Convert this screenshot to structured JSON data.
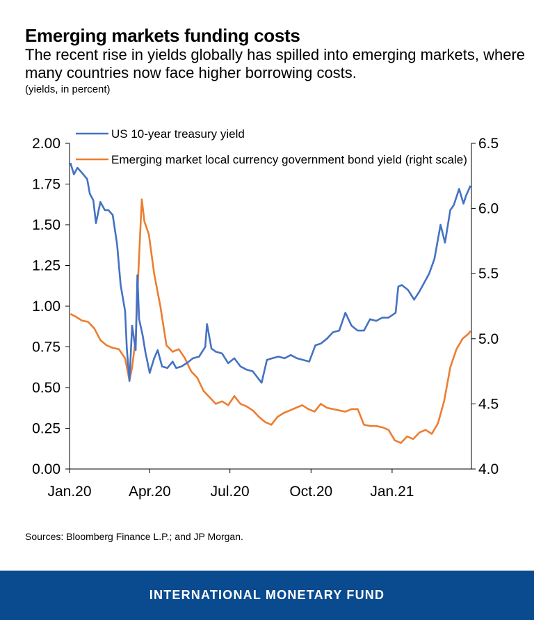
{
  "header": {
    "title": "Emerging markets funding costs",
    "subtitle": "The recent rise in yields globally has spilled into emerging markets, where many countries now face higher borrowing costs.",
    "units": "(yields, in percent)"
  },
  "source": "Sources: Bloomberg Finance L.P.; and JP Morgan.",
  "footer": {
    "org": "INTERNATIONAL MONETARY FUND"
  },
  "colors": {
    "us": "#4472c4",
    "em": "#ed7d31",
    "footer": "#0a4a8e"
  },
  "chart_data": {
    "type": "line",
    "x_ticks": [
      "Jan.20",
      "Apr.20",
      "Jul.20",
      "Oct.20",
      "Jan.21"
    ],
    "y_left": {
      "min": 0,
      "max": 2,
      "ticks": [
        "0.00",
        "0.25",
        "0.50",
        "0.75",
        "1.00",
        "1.25",
        "1.50",
        "1.75",
        "2.00"
      ]
    },
    "y_right": {
      "min": 4.0,
      "max": 6.5,
      "ticks": [
        "4.0",
        "4.5",
        "5.0",
        "5.5",
        "6.0",
        "6.5"
      ]
    },
    "legend_position": "top",
    "grid": false,
    "series": [
      {
        "name": "US 10-year treasury yield",
        "axis": "left",
        "x": [
          "2020-01-02",
          "2020-01-06",
          "2020-01-10",
          "2020-01-15",
          "2020-01-21",
          "2020-01-24",
          "2020-01-28",
          "2020-01-31",
          "2020-02-05",
          "2020-02-10",
          "2020-02-14",
          "2020-02-19",
          "2020-02-24",
          "2020-02-28",
          "2020-03-04",
          "2020-03-06",
          "2020-03-09",
          "2020-03-12",
          "2020-03-16",
          "2020-03-18",
          "2020-03-20",
          "2020-03-24",
          "2020-03-27",
          "2020-04-01",
          "2020-04-06",
          "2020-04-10",
          "2020-04-15",
          "2020-04-21",
          "2020-04-27",
          "2020-05-01",
          "2020-05-07",
          "2020-05-13",
          "2020-05-20",
          "2020-05-27",
          "2020-06-03",
          "2020-06-05",
          "2020-06-10",
          "2020-06-15",
          "2020-06-22",
          "2020-06-29",
          "2020-07-06",
          "2020-07-13",
          "2020-07-20",
          "2020-07-27",
          "2020-08-03",
          "2020-08-06",
          "2020-08-12",
          "2020-08-18",
          "2020-08-25",
          "2020-09-01",
          "2020-09-08",
          "2020-09-15",
          "2020-09-22",
          "2020-09-29",
          "2020-10-06",
          "2020-10-12",
          "2020-10-19",
          "2020-10-26",
          "2020-11-02",
          "2020-11-09",
          "2020-11-16",
          "2020-11-23",
          "2020-11-30",
          "2020-12-07",
          "2020-12-14",
          "2020-12-21",
          "2020-12-28",
          "2021-01-05",
          "2021-01-08",
          "2021-01-12",
          "2021-01-19",
          "2021-01-26",
          "2021-02-01",
          "2021-02-08",
          "2021-02-12",
          "2021-02-18",
          "2021-02-25",
          "2021-03-02",
          "2021-03-08",
          "2021-03-12",
          "2021-03-18",
          "2021-03-23",
          "2021-03-26",
          "2021-03-31"
        ],
        "y": [
          1.88,
          1.81,
          1.85,
          1.82,
          1.78,
          1.69,
          1.65,
          1.51,
          1.64,
          1.59,
          1.59,
          1.56,
          1.38,
          1.13,
          0.97,
          0.74,
          0.54,
          0.88,
          0.73,
          1.19,
          0.92,
          0.82,
          0.72,
          0.59,
          0.68,
          0.73,
          0.63,
          0.62,
          0.66,
          0.62,
          0.63,
          0.65,
          0.68,
          0.69,
          0.75,
          0.89,
          0.74,
          0.72,
          0.71,
          0.65,
          0.68,
          0.63,
          0.61,
          0.6,
          0.55,
          0.53,
          0.67,
          0.68,
          0.69,
          0.68,
          0.7,
          0.68,
          0.67,
          0.66,
          0.76,
          0.77,
          0.8,
          0.84,
          0.85,
          0.96,
          0.88,
          0.85,
          0.85,
          0.92,
          0.91,
          0.93,
          0.93,
          0.96,
          1.12,
          1.13,
          1.1,
          1.04,
          1.09,
          1.16,
          1.2,
          1.29,
          1.5,
          1.39,
          1.59,
          1.62,
          1.72,
          1.63,
          1.68,
          1.74
        ]
      },
      {
        "name": "Emerging market local currency government bond yield (right scale)",
        "axis": "right",
        "x": [
          "2020-01-02",
          "2020-01-08",
          "2020-01-15",
          "2020-01-22",
          "2020-01-29",
          "2020-02-05",
          "2020-02-12",
          "2020-02-19",
          "2020-02-26",
          "2020-03-04",
          "2020-03-09",
          "2020-03-12",
          "2020-03-16",
          "2020-03-19",
          "2020-03-23",
          "2020-03-26",
          "2020-03-31",
          "2020-04-06",
          "2020-04-13",
          "2020-04-20",
          "2020-04-27",
          "2020-05-04",
          "2020-05-11",
          "2020-05-18",
          "2020-05-25",
          "2020-06-01",
          "2020-06-08",
          "2020-06-15",
          "2020-06-22",
          "2020-06-29",
          "2020-07-06",
          "2020-07-13",
          "2020-07-20",
          "2020-07-27",
          "2020-08-03",
          "2020-08-10",
          "2020-08-17",
          "2020-08-24",
          "2020-08-31",
          "2020-09-07",
          "2020-09-14",
          "2020-09-21",
          "2020-09-28",
          "2020-10-05",
          "2020-10-12",
          "2020-10-19",
          "2020-10-26",
          "2020-11-02",
          "2020-11-09",
          "2020-11-16",
          "2020-11-23",
          "2020-11-30",
          "2020-12-07",
          "2020-12-14",
          "2020-12-21",
          "2020-12-28",
          "2021-01-04",
          "2021-01-11",
          "2021-01-18",
          "2021-01-25",
          "2021-02-01",
          "2021-02-08",
          "2021-02-15",
          "2021-02-22",
          "2021-03-01",
          "2021-03-08",
          "2021-03-15",
          "2021-03-22",
          "2021-03-29",
          "2021-03-31"
        ],
        "y": [
          5.19,
          5.17,
          5.14,
          5.13,
          5.08,
          4.99,
          4.95,
          4.93,
          4.92,
          4.85,
          4.68,
          4.78,
          5.0,
          5.5,
          6.07,
          5.9,
          5.8,
          5.5,
          5.25,
          4.95,
          4.9,
          4.92,
          4.85,
          4.75,
          4.7,
          4.6,
          4.55,
          4.5,
          4.52,
          4.49,
          4.56,
          4.5,
          4.48,
          4.45,
          4.4,
          4.36,
          4.34,
          4.4,
          4.43,
          4.45,
          4.47,
          4.49,
          4.46,
          4.44,
          4.5,
          4.47,
          4.46,
          4.45,
          4.44,
          4.46,
          4.46,
          4.34,
          4.33,
          4.33,
          4.32,
          4.3,
          4.22,
          4.2,
          4.25,
          4.23,
          4.28,
          4.3,
          4.27,
          4.35,
          4.52,
          4.78,
          4.92,
          5.0,
          5.04,
          5.06
        ]
      }
    ]
  }
}
